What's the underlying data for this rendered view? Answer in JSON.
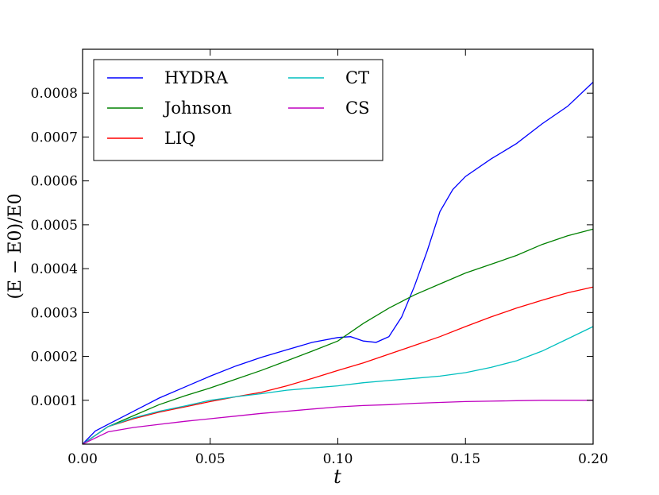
{
  "chart_data": {
    "type": "line",
    "title": "",
    "xlabel": "t",
    "ylabel": "(E − E0)/E0",
    "xlim": [
      0.0,
      0.2
    ],
    "ylim": [
      0.0,
      0.0009
    ],
    "xticks": [
      0.0,
      0.05,
      0.1,
      0.15,
      0.2
    ],
    "xtick_labels": [
      "0.00",
      "0.05",
      "0.10",
      "0.15",
      "0.20"
    ],
    "yticks": [
      0.0001,
      0.0002,
      0.0003,
      0.0004,
      0.0005,
      0.0006,
      0.0007,
      0.0008
    ],
    "ytick_labels": [
      "0.0001",
      "0.0002",
      "0.0003",
      "0.0004",
      "0.0005",
      "0.0006",
      "0.0007",
      "0.0008"
    ],
    "grid": false,
    "legend_position": "top-left",
    "legend_columns": 2,
    "series": [
      {
        "name": "HYDRA",
        "color": "#0000ff",
        "x": [
          0.0,
          0.005,
          0.01,
          0.02,
          0.03,
          0.04,
          0.05,
          0.06,
          0.07,
          0.08,
          0.09,
          0.1,
          0.105,
          0.11,
          0.115,
          0.12,
          0.125,
          0.13,
          0.135,
          0.14,
          0.145,
          0.15,
          0.16,
          0.17,
          0.18,
          0.19,
          0.2
        ],
        "y": [
          0.0,
          3e-05,
          4.5e-05,
          7.5e-05,
          0.000105,
          0.00013,
          0.000155,
          0.000178,
          0.000198,
          0.000215,
          0.000232,
          0.000243,
          0.000245,
          0.000235,
          0.000232,
          0.000245,
          0.00029,
          0.00036,
          0.00044,
          0.00053,
          0.00058,
          0.00061,
          0.00065,
          0.000685,
          0.00073,
          0.00077,
          0.000825
        ]
      },
      {
        "name": "Johnson",
        "color": "#008000",
        "x": [
          0.0,
          0.01,
          0.02,
          0.03,
          0.04,
          0.05,
          0.06,
          0.07,
          0.08,
          0.09,
          0.1,
          0.11,
          0.12,
          0.13,
          0.14,
          0.15,
          0.16,
          0.17,
          0.18,
          0.19,
          0.2
        ],
        "y": [
          0.0,
          4e-05,
          6.5e-05,
          9e-05,
          0.00011,
          0.000128,
          0.000148,
          0.000168,
          0.00019,
          0.000212,
          0.000235,
          0.000275,
          0.00031,
          0.00034,
          0.000365,
          0.00039,
          0.00041,
          0.00043,
          0.000455,
          0.000475,
          0.00049
        ]
      },
      {
        "name": "LIQ",
        "color": "#ff0000",
        "x": [
          0.0,
          0.01,
          0.02,
          0.03,
          0.04,
          0.05,
          0.06,
          0.07,
          0.08,
          0.09,
          0.1,
          0.11,
          0.12,
          0.13,
          0.14,
          0.15,
          0.16,
          0.17,
          0.18,
          0.19,
          0.2
        ],
        "y": [
          0.0,
          4e-05,
          5.8e-05,
          7.3e-05,
          8.5e-05,
          9.7e-05,
          0.000108,
          0.000118,
          0.000133,
          0.00015,
          0.000168,
          0.000185,
          0.000205,
          0.000225,
          0.000245,
          0.000268,
          0.00029,
          0.00031,
          0.000328,
          0.000345,
          0.000358
        ]
      },
      {
        "name": "CT",
        "color": "#00bfbf",
        "x": [
          0.0,
          0.01,
          0.02,
          0.03,
          0.04,
          0.05,
          0.06,
          0.07,
          0.08,
          0.09,
          0.1,
          0.11,
          0.12,
          0.13,
          0.14,
          0.15,
          0.16,
          0.17,
          0.18,
          0.19,
          0.2
        ],
        "y": [
          0.0,
          4e-05,
          6e-05,
          7.5e-05,
          8.7e-05,
          0.0001,
          0.000108,
          0.000115,
          0.000123,
          0.000128,
          0.000133,
          0.00014,
          0.000145,
          0.00015,
          0.000155,
          0.000163,
          0.000175,
          0.00019,
          0.000212,
          0.00024,
          0.000268
        ]
      },
      {
        "name": "CS",
        "color": "#bf00bf",
        "x": [
          0.0,
          0.01,
          0.02,
          0.03,
          0.04,
          0.05,
          0.06,
          0.07,
          0.08,
          0.09,
          0.1,
          0.11,
          0.12,
          0.13,
          0.14,
          0.15,
          0.16,
          0.17,
          0.18,
          0.19,
          0.2
        ],
        "y": [
          0.0,
          2.8e-05,
          3.8e-05,
          4.5e-05,
          5.2e-05,
          5.8e-05,
          6.4e-05,
          7e-05,
          7.5e-05,
          8e-05,
          8.5e-05,
          8.8e-05,
          9e-05,
          9.3e-05,
          9.5e-05,
          9.7e-05,
          9.8e-05,
          9.9e-05,
          0.0001,
          0.0001,
          0.0001
        ]
      }
    ]
  }
}
